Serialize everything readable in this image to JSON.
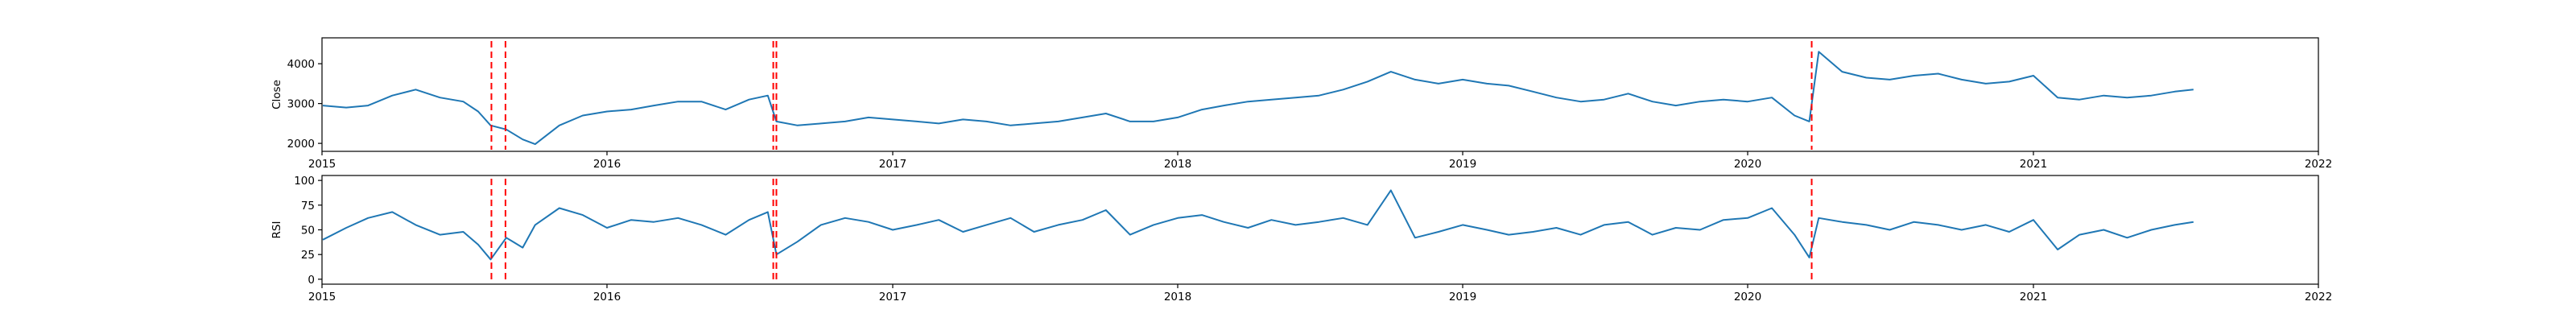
{
  "chart_data": [
    {
      "type": "line",
      "title": "",
      "xlabel": "",
      "ylabel": "Close",
      "xlim": [
        "2015-01-01",
        "2022-01-01"
      ],
      "ylim": [
        1800,
        4650
      ],
      "x_ticks": [
        "2015",
        "2016",
        "2017",
        "2018",
        "2019",
        "2020",
        "2021",
        "2022"
      ],
      "y_ticks": [
        2000,
        3000,
        4000
      ],
      "color": "#1f77b4",
      "marker_color": "#ff0000",
      "grid": false,
      "series": [
        {
          "x": [
            "2015-01-02",
            "2015-02-01",
            "2015-03-01",
            "2015-04-01",
            "2015-05-01",
            "2015-06-01",
            "2015-07-01",
            "2015-07-20",
            "2015-08-05",
            "2015-08-25",
            "2015-09-15",
            "2015-10-01",
            "2015-11-01",
            "2015-12-01",
            "2016-01-01",
            "2016-02-01",
            "2016-03-01",
            "2016-04-01",
            "2016-05-01",
            "2016-06-01",
            "2016-07-01",
            "2016-07-25",
            "2016-08-05",
            "2016-09-01",
            "2016-10-01",
            "2016-11-01",
            "2016-12-01",
            "2017-01-01",
            "2017-02-01",
            "2017-03-01",
            "2017-04-01",
            "2017-05-01",
            "2017-06-01",
            "2017-07-01",
            "2017-08-01",
            "2017-09-01",
            "2017-10-01",
            "2017-11-01",
            "2017-12-01",
            "2018-01-01",
            "2018-02-01",
            "2018-03-01",
            "2018-04-01",
            "2018-05-01",
            "2018-06-01",
            "2018-07-01",
            "2018-08-01",
            "2018-09-01",
            "2018-10-01",
            "2018-11-01",
            "2018-12-01",
            "2019-01-01",
            "2019-02-01",
            "2019-03-01",
            "2019-04-01",
            "2019-05-01",
            "2019-06-01",
            "2019-07-01",
            "2019-08-01",
            "2019-09-01",
            "2019-10-01",
            "2019-11-01",
            "2019-12-01",
            "2020-01-01",
            "2020-02-01",
            "2020-03-01",
            "2020-03-20",
            "2020-04-01",
            "2020-05-01",
            "2020-06-01",
            "2020-07-01",
            "2020-08-01",
            "2020-09-01",
            "2020-10-01",
            "2020-11-01",
            "2020-12-01",
            "2021-01-01",
            "2021-02-01",
            "2021-03-01",
            "2021-04-01",
            "2021-05-01",
            "2021-06-01",
            "2021-07-01",
            "2021-07-25"
          ],
          "values": [
            2950,
            2900,
            2950,
            3200,
            3350,
            3150,
            3050,
            2800,
            2450,
            2350,
            2100,
            1980,
            2450,
            2700,
            2800,
            2850,
            2950,
            3050,
            3050,
            2850,
            3100,
            3200,
            2550,
            2450,
            2500,
            2550,
            2650,
            2600,
            2550,
            2500,
            2600,
            2550,
            2450,
            2500,
            2550,
            2650,
            2750,
            2550,
            2550,
            2650,
            2850,
            2950,
            3050,
            3100,
            3150,
            3200,
            3350,
            3550,
            3800,
            3600,
            3500,
            3600,
            3500,
            3450,
            3300,
            3150,
            3050,
            3100,
            3250,
            3050,
            2950,
            3050,
            3100,
            3050,
            3150,
            2700,
            2550,
            4300,
            3800,
            3650,
            3600,
            3700,
            3750,
            3600,
            3500,
            3550,
            3700,
            3150,
            3100,
            3200,
            3150,
            3200,
            3300,
            3350
          ]
        }
      ],
      "event_markers": [
        "2015-08-06",
        "2015-08-24",
        "2016-08-01",
        "2016-08-05",
        "2020-03-23"
      ]
    },
    {
      "type": "line",
      "title": "",
      "xlabel": "",
      "ylabel": "RSI",
      "xlim": [
        "2015-01-01",
        "2022-01-01"
      ],
      "ylim": [
        -5,
        105
      ],
      "x_ticks": [
        "2015",
        "2016",
        "2017",
        "2018",
        "2019",
        "2020",
        "2021",
        "2022"
      ],
      "y_ticks": [
        0,
        25,
        50,
        75,
        100
      ],
      "color": "#1f77b4",
      "marker_color": "#ff0000",
      "grid": false,
      "series": [
        {
          "x": [
            "2015-01-02",
            "2015-02-01",
            "2015-03-01",
            "2015-04-01",
            "2015-05-01",
            "2015-06-01",
            "2015-07-01",
            "2015-07-20",
            "2015-08-05",
            "2015-08-25",
            "2015-09-15",
            "2015-10-01",
            "2015-11-01",
            "2015-12-01",
            "2016-01-01",
            "2016-02-01",
            "2016-03-01",
            "2016-04-01",
            "2016-05-01",
            "2016-06-01",
            "2016-07-01",
            "2016-07-25",
            "2016-08-05",
            "2016-09-01",
            "2016-10-01",
            "2016-11-01",
            "2016-12-01",
            "2017-01-01",
            "2017-02-01",
            "2017-03-01",
            "2017-04-01",
            "2017-05-01",
            "2017-06-01",
            "2017-07-01",
            "2017-08-01",
            "2017-09-01",
            "2017-10-01",
            "2017-11-01",
            "2017-12-01",
            "2018-01-01",
            "2018-02-01",
            "2018-03-01",
            "2018-04-01",
            "2018-05-01",
            "2018-06-01",
            "2018-07-01",
            "2018-08-01",
            "2018-09-01",
            "2018-10-01",
            "2018-11-01",
            "2018-12-01",
            "2019-01-01",
            "2019-02-01",
            "2019-03-01",
            "2019-04-01",
            "2019-05-01",
            "2019-06-01",
            "2019-07-01",
            "2019-08-01",
            "2019-09-01",
            "2019-10-01",
            "2019-11-01",
            "2019-12-01",
            "2020-01-01",
            "2020-02-01",
            "2020-03-01",
            "2020-03-20",
            "2020-04-01",
            "2020-05-01",
            "2020-06-01",
            "2020-07-01",
            "2020-08-01",
            "2020-09-01",
            "2020-10-01",
            "2020-11-01",
            "2020-12-01",
            "2021-01-01",
            "2021-02-01",
            "2021-03-01",
            "2021-04-01",
            "2021-05-01",
            "2021-06-01",
            "2021-07-01",
            "2021-07-25"
          ],
          "values": [
            40,
            52,
            62,
            68,
            55,
            45,
            48,
            35,
            20,
            42,
            32,
            55,
            72,
            65,
            52,
            60,
            58,
            62,
            55,
            45,
            60,
            68,
            25,
            38,
            55,
            62,
            58,
            50,
            55,
            60,
            48,
            55,
            62,
            48,
            55,
            60,
            70,
            45,
            55,
            62,
            65,
            58,
            52,
            60,
            55,
            58,
            62,
            55,
            90,
            42,
            48,
            55,
            50,
            45,
            48,
            52,
            45,
            55,
            58,
            45,
            52,
            50,
            60,
            62,
            72,
            45,
            22,
            62,
            58,
            55,
            50,
            58,
            55,
            50,
            55,
            48,
            60,
            30,
            45,
            50,
            42,
            50,
            55,
            58
          ]
        }
      ],
      "event_markers": [
        "2015-08-06",
        "2015-08-24",
        "2016-08-01",
        "2016-08-05",
        "2020-03-23"
      ]
    }
  ]
}
